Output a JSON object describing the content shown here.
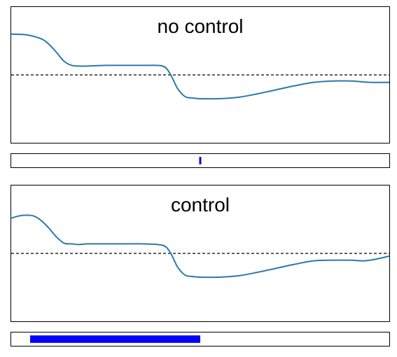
{
  "chart_data": [
    {
      "type": "line",
      "title": "no control",
      "xlabel": "",
      "ylabel": "",
      "ylim": [
        -1,
        1
      ],
      "grid": false,
      "reference_line": {
        "y": 0,
        "style": "dashed",
        "color": "#000000"
      },
      "series": [
        {
          "color": "#2a7aa8",
          "x": [
            0,
            0.04,
            0.08,
            0.1,
            0.12,
            0.14,
            0.16,
            0.18,
            0.2,
            0.25,
            0.3,
            0.35,
            0.4,
            0.42,
            0.44,
            0.46,
            0.48,
            0.5,
            0.55,
            0.6,
            0.65,
            0.7,
            0.75,
            0.8,
            0.85,
            0.9,
            0.95,
            1.0
          ],
          "values": [
            0.6,
            0.59,
            0.53,
            0.45,
            0.33,
            0.2,
            0.14,
            0.13,
            0.13,
            0.14,
            0.14,
            0.14,
            0.13,
            0.02,
            -0.2,
            -0.32,
            -0.34,
            -0.35,
            -0.35,
            -0.33,
            -0.28,
            -0.22,
            -0.16,
            -0.11,
            -0.09,
            -0.09,
            -0.11,
            -0.11
          ]
        }
      ]
    },
    {
      "type": "bar",
      "orientation": "horizontal",
      "xlim": [
        0,
        1
      ],
      "bar_start": 0.5,
      "bar_end": 0.5,
      "bar_color": "#1a00cc"
    },
    {
      "type": "line",
      "title": "control",
      "xlabel": "",
      "ylabel": "",
      "ylim": [
        -1,
        1
      ],
      "grid": false,
      "reference_line": {
        "y": 0,
        "style": "dashed",
        "color": "#000000"
      },
      "series": [
        {
          "color": "#2a7aa8",
          "x": [
            0,
            0.03,
            0.06,
            0.08,
            0.1,
            0.12,
            0.14,
            0.16,
            0.18,
            0.2,
            0.25,
            0.3,
            0.35,
            0.4,
            0.42,
            0.44,
            0.46,
            0.48,
            0.5,
            0.55,
            0.6,
            0.65,
            0.7,
            0.75,
            0.8,
            0.85,
            0.9,
            0.93,
            0.96,
            1.0
          ],
          "values": [
            0.52,
            0.56,
            0.55,
            0.48,
            0.37,
            0.24,
            0.15,
            0.14,
            0.13,
            0.14,
            0.14,
            0.14,
            0.14,
            0.12,
            0.02,
            -0.2,
            -0.32,
            -0.34,
            -0.35,
            -0.35,
            -0.33,
            -0.28,
            -0.22,
            -0.16,
            -0.11,
            -0.1,
            -0.1,
            -0.11,
            -0.09,
            -0.04
          ]
        }
      ]
    },
    {
      "type": "bar",
      "orientation": "horizontal",
      "xlim": [
        0,
        1
      ],
      "bar_start": 0.05,
      "bar_end": 0.5,
      "bar_color": "#0000ff"
    }
  ]
}
